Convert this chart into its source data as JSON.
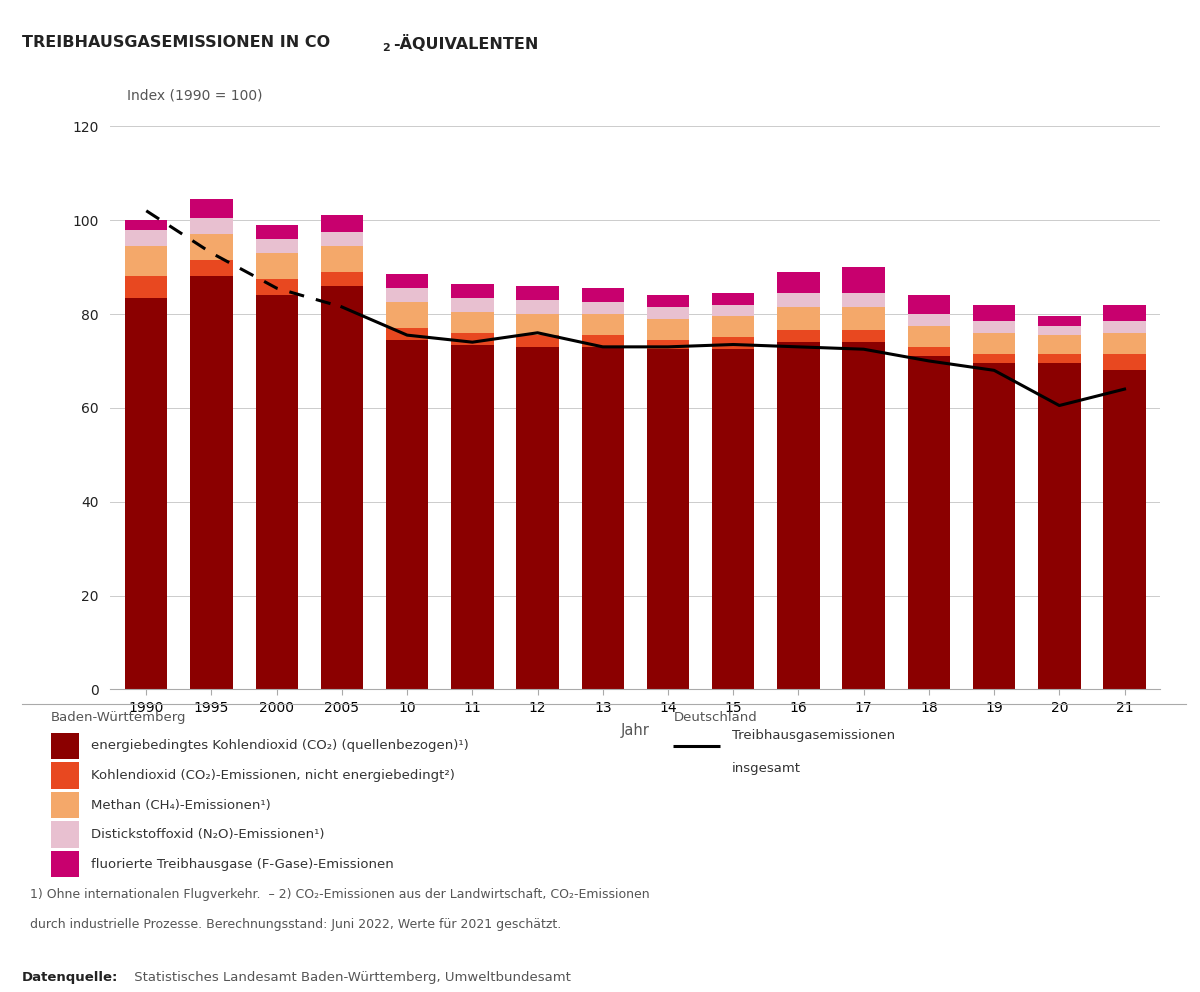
{
  "year_labels": [
    "1990",
    "1995",
    "2000",
    "2005",
    "10",
    "11",
    "12",
    "13",
    "14",
    "15",
    "16",
    "17",
    "18",
    "19",
    "20",
    "21"
  ],
  "co2_energy": [
    83.5,
    88.0,
    84.0,
    86.0,
    74.5,
    73.5,
    73.0,
    73.0,
    72.5,
    72.5,
    74.0,
    74.0,
    71.0,
    69.5,
    69.5,
    68.0
  ],
  "co2_non_energy": [
    4.5,
    3.5,
    3.5,
    3.0,
    2.5,
    2.5,
    2.5,
    2.5,
    2.0,
    2.5,
    2.5,
    2.5,
    2.0,
    2.0,
    2.0,
    3.5
  ],
  "methane": [
    6.5,
    5.5,
    5.5,
    5.5,
    5.5,
    4.5,
    4.5,
    4.5,
    4.5,
    4.5,
    5.0,
    5.0,
    4.5,
    4.5,
    4.0,
    4.5
  ],
  "n2o": [
    3.5,
    3.5,
    3.0,
    3.0,
    3.0,
    3.0,
    3.0,
    2.5,
    2.5,
    2.5,
    3.0,
    3.0,
    2.5,
    2.5,
    2.0,
    2.5
  ],
  "f_gases": [
    2.0,
    4.0,
    3.0,
    3.5,
    3.0,
    3.0,
    3.0,
    3.0,
    2.5,
    2.5,
    4.5,
    5.5,
    4.0,
    3.5,
    2.0,
    3.5
  ],
  "germany_line": [
    102.0,
    93.0,
    85.5,
    81.5,
    75.5,
    74.0,
    76.0,
    73.0,
    73.0,
    73.5,
    73.0,
    72.5,
    70.0,
    68.0,
    60.5,
    64.0
  ],
  "colors": {
    "co2_energy": "#8B0000",
    "co2_non_energy": "#E84820",
    "methane": "#F4A86A",
    "n2o": "#E8C0D0",
    "f_gases": "#C8006E"
  },
  "germany_line_color": "#000000",
  "ylim": [
    0,
    130
  ],
  "yticks": [
    0,
    20,
    40,
    60,
    80,
    100,
    120
  ],
  "ylabel": "Index (1990 = 100)",
  "xlabel": "Jahr",
  "background_color": "#FFFFFF",
  "grid_color": "#CCCCCC",
  "axis_color": "#AAAAAA",
  "text_dark": "#222222",
  "text_mid": "#555555",
  "bw_title": "Baden-Württemberg",
  "de_title": "Deutschland",
  "legend_labels": [
    "energiebedingtes Kohlendioxid (CO₂) (quellenbezogen)¹)",
    "Kohlendioxid (CO₂)-Emissionen, nicht energiebedingt²)",
    "Methan (CH₄)-Emissionen¹)",
    "Distickstoffoxid (N₂O)-Emissionen¹)",
    "fluorierte Treibhausgase (F-Gase)-Emissionen"
  ],
  "de_label1": "Treibhausgasemissionen",
  "de_label2": "insgesamt",
  "footnote1": "1) Ohne internationalen Flugverkehr.  – 2) CO₂-Emissionen aus der Landwirtschaft, CO₂-Emissionen",
  "footnote2": "durch industrielle Prozesse. Berechnungsstand: Juni 2022, Werte für 2021 geschätzt.",
  "source_bold": "Datenquelle:",
  "source_normal": " Statistisches Landesamt Baden-Württemberg, Umweltbundesamt"
}
